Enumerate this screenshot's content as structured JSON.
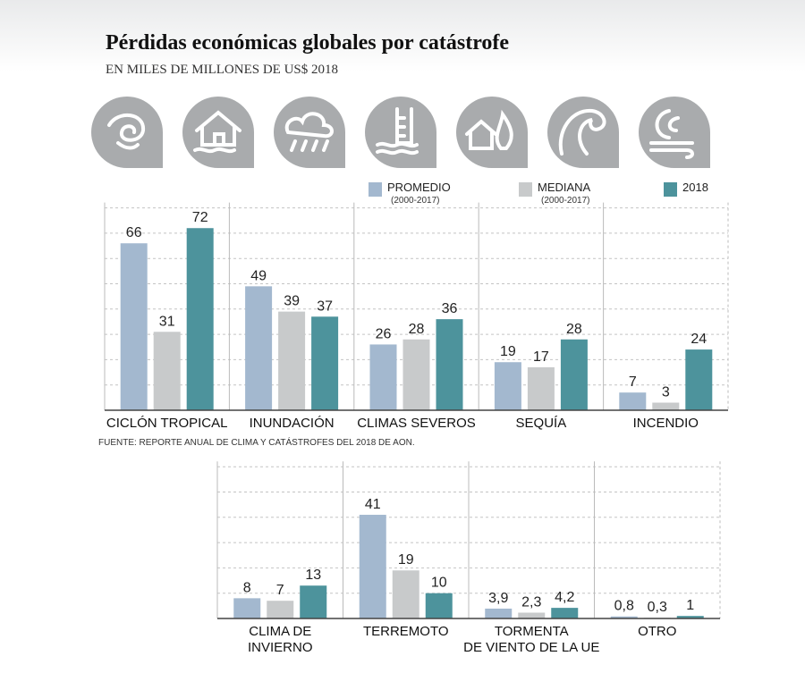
{
  "chart_data": [
    {
      "type": "bar",
      "title": "Pérdidas económicas globales por catástrofe",
      "subtitle": "EN MILES DE MILLONES DE US$ 2018",
      "source": "FUENTE: REPORTE ANUAL DE CLIMA Y CATÁSTROFES DEL 2018 DE AON.",
      "categories": [
        [
          "CICLÓN TROPICAL"
        ],
        [
          "INUNDACIÓN"
        ],
        [
          "CLIMAS SEVEROS"
        ],
        [
          "SEQUÍA"
        ],
        [
          "INCENDIO"
        ]
      ],
      "series": [
        {
          "name": "PROMEDIO",
          "period": "(2000-2017)",
          "color": "#a3b8cf",
          "values": [
            66,
            49,
            26,
            19,
            7
          ]
        },
        {
          "name": "MEDIANA",
          "period": "(2000-2017)",
          "color": "#c8cacb",
          "values": [
            31,
            39,
            28,
            17,
            3
          ]
        },
        {
          "name": "2018",
          "color": "#4d939c",
          "values": [
            72,
            37,
            36,
            28,
            24
          ]
        }
      ],
      "ylim": [
        0,
        80
      ],
      "yticks": [
        0,
        10,
        20,
        30,
        40,
        50,
        60,
        70,
        80
      ],
      "grid": true
    },
    {
      "type": "bar",
      "categories": [
        [
          "CLIMA DE",
          "INVIERNO"
        ],
        [
          "TERREMOTO"
        ],
        [
          "TORMENTA",
          "DE VIENTO DE LA UE"
        ],
        [
          "OTRO"
        ]
      ],
      "series": [
        {
          "color": "#a3b8cf",
          "values": [
            8,
            41,
            3.9,
            0.8
          ],
          "value_labels": [
            "8",
            "41",
            "3,9",
            "0,8"
          ]
        },
        {
          "color": "#c8cacb",
          "values": [
            7,
            19,
            2.3,
            0.3
          ],
          "value_labels": [
            "7",
            "19",
            "2,3",
            "0,3"
          ]
        },
        {
          "color": "#4d939c",
          "values": [
            13,
            10,
            4.2,
            1
          ],
          "value_labels": [
            "13",
            "10",
            "4,2",
            "1"
          ]
        }
      ],
      "ylim": [
        0,
        60
      ],
      "yticks": [
        0,
        10,
        20,
        30,
        40,
        50,
        60
      ],
      "grid": true
    }
  ]
}
